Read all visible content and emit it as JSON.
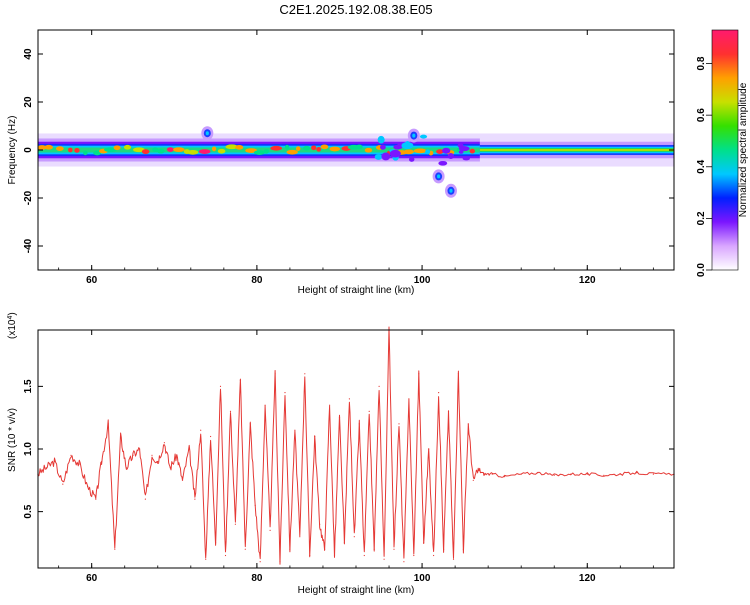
{
  "title": "C2E1.2025.192.08.38.E05",
  "chart_data": [
    {
      "type": "heatmap",
      "xlabel": "Height of straight line (km)",
      "ylabel": "Frequency (Hz)",
      "xlim": [
        53.5,
        130.5
      ],
      "ylim": [
        -50,
        50
      ],
      "xticks": [
        60,
        80,
        100,
        120
      ],
      "yticks": [
        40,
        20,
        0,
        -20,
        -40
      ],
      "band_center_hz": 0,
      "band_halfwidth_hz": 3,
      "strong_segment_x": [
        53.5,
        107
      ],
      "steady_segment_x": [
        107,
        130.5
      ],
      "features": [
        {
          "x": 74,
          "y": 7
        },
        {
          "x": 99,
          "y": 6
        },
        {
          "x": 102,
          "y": -11
        },
        {
          "x": 103.5,
          "y": -17
        }
      ],
      "colorbar": {
        "label": "Normalized spectral amplitude",
        "range": [
          0,
          0.93
        ],
        "ticks": [
          "0.0",
          "0.2",
          "0.4",
          "0.6",
          "0.8"
        ],
        "colors": [
          "#ffffff",
          "#d9a6ff",
          "#7b16ff",
          "#0020ff",
          "#00c8ff",
          "#00e08a",
          "#35e000",
          "#c8e000",
          "#ffa000",
          "#ff3030",
          "#ff1a6e"
        ]
      }
    },
    {
      "type": "line",
      "xlabel": "Height of straight line (km)",
      "ylabel": "SNR (10 * v/v)",
      "multiplier": "(x10",
      "multiplier_exp": "4",
      "multiplier_close": ")",
      "xlim": [
        53.5,
        130.5
      ],
      "ylim": [
        0.05,
        1.95
      ],
      "xticks": [
        60,
        80,
        100,
        120
      ],
      "yticks": [
        0.5,
        1.0,
        1.5
      ],
      "ytick_labels": [
        "0.5",
        "1.0",
        "1.5"
      ],
      "color": "#e53935",
      "series": [
        {
          "x": [
            53.5,
            54.5,
            55.5,
            56.5,
            57.5,
            58.5,
            59.5,
            60.5,
            61.2,
            62,
            62.8,
            63.5,
            64.2,
            65,
            65.8,
            66.5,
            67.3,
            68,
            68.8,
            69.5,
            70.3,
            71,
            71.8,
            72.5,
            73.2,
            73.8,
            74.4,
            75,
            75.6,
            76.2,
            76.8,
            77.4,
            78,
            78.6,
            79.2,
            79.8,
            80.4,
            81,
            81.6,
            82.2,
            82.8,
            83.4,
            84,
            84.6,
            85.2,
            85.8,
            86.4,
            87,
            87.6,
            88.2,
            88.8,
            89.4,
            90,
            90.6,
            91.2,
            91.8,
            92.4,
            93,
            93.6,
            94.2,
            94.8,
            95.4,
            96,
            96.6,
            97.2,
            97.8,
            98.4,
            99,
            99.6,
            100.2,
            100.8,
            101.4,
            102,
            102.6,
            103.2,
            103.8,
            104.4,
            105,
            105.6,
            106.2,
            106.8,
            107.5,
            108.5,
            110,
            112,
            114,
            116,
            118,
            120,
            122,
            124,
            126,
            128,
            130.5
          ],
          "values": [
            0.8,
            0.85,
            0.9,
            0.72,
            0.95,
            0.88,
            0.7,
            0.6,
            0.9,
            1.2,
            0.2,
            1.1,
            0.85,
            0.95,
            1.0,
            0.6,
            0.95,
            0.9,
            1.05,
            0.85,
            0.95,
            0.75,
            1.0,
            0.6,
            1.15,
            0.12,
            1.1,
            0.25,
            1.5,
            0.15,
            1.3,
            0.4,
            1.55,
            0.2,
            1.2,
            0.55,
            0.1,
            1.35,
            0.35,
            1.6,
            0.1,
            1.45,
            0.2,
            1.15,
            0.3,
            1.6,
            0.15,
            1.1,
            0.4,
            0.2,
            1.35,
            0.15,
            1.25,
            0.25,
            1.4,
            0.3,
            1.2,
            0.15,
            1.3,
            0.2,
            1.5,
            0.12,
            1.95,
            0.2,
            1.2,
            0.1,
            1.4,
            0.15,
            1.6,
            0.25,
            1.0,
            0.15,
            1.45,
            0.2,
            1.3,
            0.12,
            1.6,
            0.2,
            1.2,
            0.75,
            0.83,
            0.8,
            0.8,
            0.78,
            0.8,
            0.81,
            0.79,
            0.8,
            0.8,
            0.79,
            0.8,
            0.81,
            0.8,
            0.8
          ]
        }
      ]
    }
  ]
}
